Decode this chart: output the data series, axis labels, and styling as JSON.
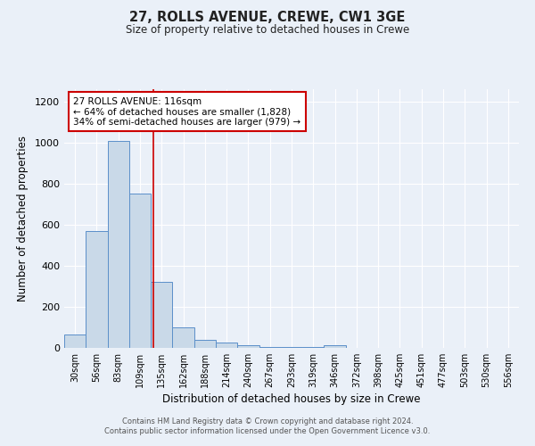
{
  "title_line1": "27, ROLLS AVENUE, CREWE, CW1 3GE",
  "title_line2": "Size of property relative to detached houses in Crewe",
  "xlabel": "Distribution of detached houses by size in Crewe",
  "ylabel": "Number of detached properties",
  "footnote": "Contains HM Land Registry data © Crown copyright and database right 2024.\nContains public sector information licensed under the Open Government Licence v3.0.",
  "categories": [
    "30sqm",
    "56sqm",
    "83sqm",
    "109sqm",
    "135sqm",
    "162sqm",
    "188sqm",
    "214sqm",
    "240sqm",
    "267sqm",
    "293sqm",
    "319sqm",
    "346sqm",
    "372sqm",
    "398sqm",
    "425sqm",
    "451sqm",
    "477sqm",
    "503sqm",
    "530sqm",
    "556sqm"
  ],
  "values": [
    65,
    570,
    1010,
    750,
    320,
    100,
    40,
    25,
    12,
    5,
    5,
    5,
    15,
    0,
    0,
    0,
    0,
    0,
    0,
    0,
    0
  ],
  "bar_color": "#c9d9e8",
  "bar_edge_color": "#5b8fc9",
  "background_color": "#eaf0f8",
  "grid_color": "#ffffff",
  "annotation_text": "27 ROLLS AVENUE: 116sqm\n← 64% of detached houses are smaller (1,828)\n34% of semi-detached houses are larger (979) →",
  "annotation_box_color": "#ffffff",
  "annotation_box_edge": "#cc0000",
  "red_line_x": 3.62,
  "ylim": [
    0,
    1260
  ],
  "yticks": [
    0,
    200,
    400,
    600,
    800,
    1000,
    1200
  ]
}
